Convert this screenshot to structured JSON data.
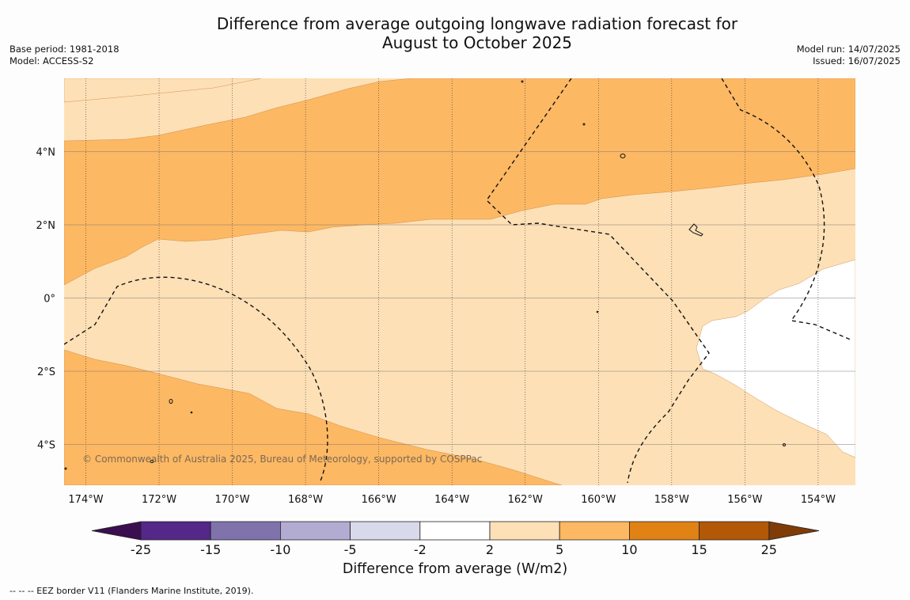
{
  "title": "Difference from average outgoing longwave radiation forecast for\nAugust to October 2025",
  "meta_left": {
    "base_period": "Base period: 1981-2018",
    "model": "Model: ACCESS-S2"
  },
  "meta_right": {
    "model_run": "Model run: 14/07/2025",
    "issued": "Issued: 16/07/2025"
  },
  "copyright": "© Commonwealth of Australia 2025, Bureau of Meteorology, supported by COSPPac",
  "map": {
    "lon_ticks": [
      "174°W",
      "172°W",
      "170°W",
      "168°W",
      "166°W",
      "164°W",
      "162°W",
      "160°W",
      "158°W",
      "156°W",
      "154°W"
    ],
    "lat_ticks": [
      "4°N",
      "2°N",
      "0°",
      "2°S",
      "4°S"
    ],
    "lon_values": [
      -174,
      -172,
      -170,
      -168,
      -166,
      -164,
      -162,
      -160,
      -158,
      -156,
      -154
    ],
    "lat_values": [
      4,
      2,
      0,
      -2,
      -4
    ]
  },
  "colorbar": {
    "label": "Difference from average (W/m2)",
    "tick_labels": [
      "-25",
      "-15",
      "-10",
      "-5",
      "-2",
      "2",
      "5",
      "10",
      "15",
      "25"
    ],
    "boundaries": [
      -25,
      -15,
      -10,
      -5,
      -2,
      2,
      5,
      10,
      15,
      25
    ],
    "under_color": "#3b0f4f",
    "over_color": "#7f3b08",
    "colors": [
      "#542788",
      "#8073ac",
      "#b2abd2",
      "#d8daeb",
      "#ffffff",
      "#fee0b6",
      "#fdb863",
      "#e08214",
      "#b35806"
    ]
  },
  "legend_note": "--  --  -- EEZ border V11 (Flanders Marine Institute, 2019)."
}
